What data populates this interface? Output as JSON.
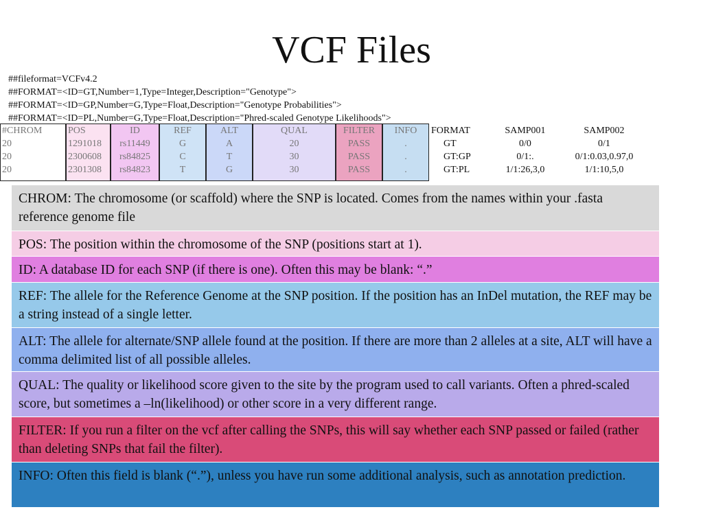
{
  "title": "VCF Files",
  "header_lines": [
    "##fileformat=VCFv4.2",
    "##FORMAT=<ID=GT,Number=1,Type=Integer,Description=\"Genotype\">",
    "##FORMAT=<ID=GP,Number=G,Type=Float,Description=\"Genotype Probabilities\">",
    "##FORMAT=<ID=PL,Number=G,Type=Float,Description=\"Phred-scaled Genotype Likelihoods\">"
  ],
  "table": {
    "columns": [
      "#CHROM",
      "POS",
      "ID",
      "REF",
      "ALT",
      "QUAL",
      "FILTER",
      "INFO",
      "FORMAT",
      "SAMP001",
      "SAMP002"
    ],
    "rows": [
      [
        "20",
        "1291018",
        "rs11449",
        "G",
        "A",
        "20",
        "PASS",
        ".",
        "GT",
        "0/0",
        "0/1"
      ],
      [
        "20",
        "2300608",
        "rs84825",
        "C",
        "T",
        "30",
        "PASS",
        ".",
        "GT:GP",
        "0/1:.",
        "0/1:0.03,0.97,0"
      ],
      [
        "20",
        "2301308",
        "rs84823",
        "T",
        "G",
        "30",
        "PASS",
        ".",
        "GT:PL",
        "1/1:26,3,0",
        "1/1:10,5,0"
      ]
    ]
  },
  "descriptions": [
    "CHROM: The chromosome (or scaffold) where the SNP is located.  Comes from the names within your .fasta reference genome file",
    "POS: The position within the chromosome of the SNP (positions start at 1).",
    "ID: A database ID for each SNP (if there is one).  Often this may be blank: “.”",
    "REF: The allele for the Reference Genome at the SNP position.  If the position has an InDel mutation, the REF may be a string instead of a single letter.",
    "ALT: The allele for alternate/SNP allele found at the position.  If there are more than 2 alleles at a site, ALT will have a comma delimited list of all possible alleles.",
    "QUAL: The quality or likelihood score given to the site by the program used to call variants.  Often a phred-scaled score, but sometimes a –ln(likelihood) or other score in a very different range.",
    "FILTER: If you run a filter on the vcf after calling the SNPs, this will say whether each SNP passed or failed (rather than deleting SNPs that fail the filter).",
    "INFO: Often this field is blank (“.”), unless you have run some additional analysis, such as annotation prediction."
  ]
}
